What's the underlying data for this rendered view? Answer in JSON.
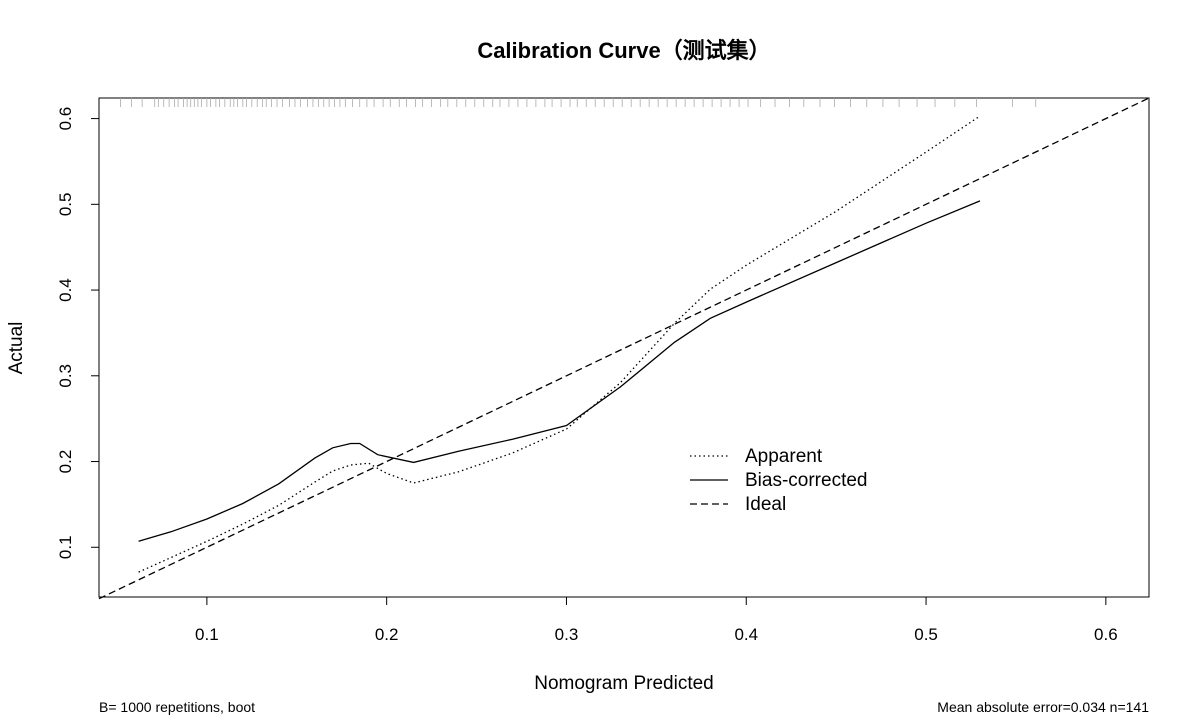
{
  "chart_data": {
    "type": "line",
    "title": "Calibration Curve（测试集）",
    "xlabel": "Nomogram Predicted",
    "ylabel": "Actual",
    "xlim": [
      0.04,
      0.624
    ],
    "ylim": [
      0.042,
      0.624
    ],
    "xticks": [
      0.1,
      0.2,
      0.3,
      0.4,
      0.5,
      0.6
    ],
    "yticks": [
      0.1,
      0.2,
      0.3,
      0.4,
      0.5,
      0.6
    ],
    "xtick_labels": [
      "0.1",
      "0.2",
      "0.3",
      "0.4",
      "0.5",
      "0.6"
    ],
    "ytick_labels": [
      "0.1",
      "0.2",
      "0.3",
      "0.4",
      "0.5",
      "0.6"
    ],
    "grid": false,
    "legend_position": "center-right",
    "series": [
      {
        "name": "Apparent",
        "linestyle": "dotted",
        "color": "#000000",
        "x": [
          0.062,
          0.08,
          0.1,
          0.12,
          0.14,
          0.16,
          0.17,
          0.18,
          0.19,
          0.2,
          0.215,
          0.24,
          0.27,
          0.3,
          0.33,
          0.36,
          0.38,
          0.4,
          0.45,
          0.5,
          0.53
        ],
        "y": [
          0.071,
          0.088,
          0.107,
          0.127,
          0.149,
          0.176,
          0.189,
          0.196,
          0.198,
          0.186,
          0.175,
          0.188,
          0.21,
          0.238,
          0.292,
          0.361,
          0.401,
          0.429,
          0.492,
          0.561,
          0.603
        ]
      },
      {
        "name": "Bias-corrected",
        "linestyle": "solid",
        "color": "#000000",
        "x": [
          0.062,
          0.08,
          0.1,
          0.12,
          0.14,
          0.16,
          0.17,
          0.18,
          0.185,
          0.195,
          0.215,
          0.24,
          0.27,
          0.3,
          0.33,
          0.36,
          0.38,
          0.4,
          0.45,
          0.5,
          0.53
        ],
        "y": [
          0.107,
          0.118,
          0.133,
          0.151,
          0.174,
          0.204,
          0.216,
          0.221,
          0.221,
          0.208,
          0.199,
          0.212,
          0.226,
          0.242,
          0.287,
          0.339,
          0.367,
          0.386,
          0.432,
          0.478,
          0.504
        ]
      },
      {
        "name": "Ideal",
        "linestyle": "dashed",
        "color": "#000000",
        "x": [
          0.04,
          0.624
        ],
        "y": [
          0.04,
          0.624
        ]
      }
    ],
    "rug_ticks": [
      0.052,
      0.058,
      0.064,
      0.071,
      0.073,
      0.076,
      0.079,
      0.082,
      0.084,
      0.087,
      0.089,
      0.091,
      0.093,
      0.095,
      0.097,
      0.1,
      0.102,
      0.105,
      0.107,
      0.11,
      0.113,
      0.115,
      0.117,
      0.12,
      0.122,
      0.125,
      0.128,
      0.131,
      0.133,
      0.136,
      0.139,
      0.142,
      0.146,
      0.149,
      0.152,
      0.156,
      0.159,
      0.162,
      0.165,
      0.168,
      0.171,
      0.174,
      0.177,
      0.181,
      0.185,
      0.189,
      0.193,
      0.198,
      0.202,
      0.207,
      0.211,
      0.216,
      0.22,
      0.225,
      0.23,
      0.234,
      0.239,
      0.244,
      0.249,
      0.254,
      0.259,
      0.263,
      0.268,
      0.273,
      0.278,
      0.283,
      0.288,
      0.292,
      0.297,
      0.302,
      0.306,
      0.311,
      0.316,
      0.321,
      0.326,
      0.331,
      0.336,
      0.341,
      0.346,
      0.351,
      0.356,
      0.361,
      0.366,
      0.371,
      0.376,
      0.381,
      0.386,
      0.391,
      0.396,
      0.401,
      0.408,
      0.416,
      0.424,
      0.432,
      0.441,
      0.449,
      0.458,
      0.467,
      0.476,
      0.485,
      0.495,
      0.505,
      0.516,
      0.528,
      0.548,
      0.561
    ],
    "footnote_left": "B= 1000 repetitions, boot",
    "footnote_right": "Mean absolute error=0.034 n=141"
  }
}
